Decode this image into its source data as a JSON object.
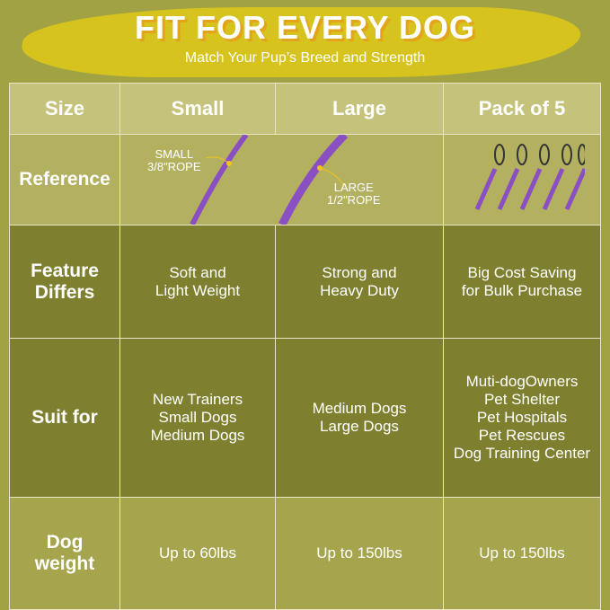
{
  "header": {
    "title": "FIT FOR EVERY DOG",
    "subtitle": "Match Your Pup’s Breed and Strength"
  },
  "columns": [
    "Size",
    "Small",
    "Large",
    "Pack of 5"
  ],
  "reference": {
    "label": "Reference",
    "small_label": "SMALL\n3/8\"ROPE",
    "large_label": "LARGE\n1/2\"ROPE"
  },
  "rows": [
    {
      "label": "Feature\nDiffers",
      "cells": [
        "Soft and\nLight Weight",
        "Strong and\nHeavy Duty",
        "Big Cost Saving\nfor Bulk Purchase"
      ]
    },
    {
      "label": "Suit for",
      "cells": [
        "New Trainers\nSmall Dogs\nMedium Dogs",
        "Medium Dogs\nLarge Dogs",
        "Muti-dogOwners\nPet Shelter\nPet Hospitals\nPet Rescues\nDog Training Center"
      ]
    },
    {
      "label": "Dog\nweight",
      "cells": [
        "Up to 60lbs",
        "Up to 150lbs",
        "Up to 150lbs"
      ]
    }
  ],
  "colors": {
    "background": "#a0a244",
    "brush": "#d6c31e",
    "rope": "#8a4fc2"
  }
}
